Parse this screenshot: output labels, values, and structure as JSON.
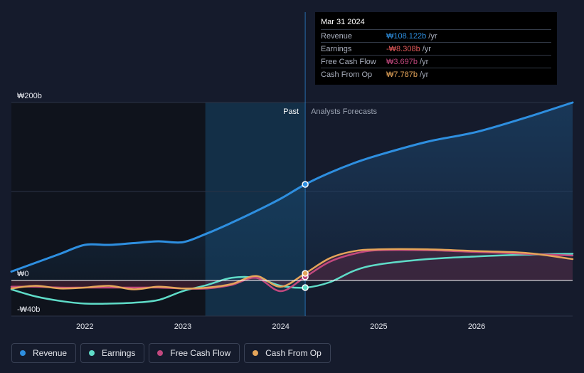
{
  "chart_data": {
    "type": "line",
    "y_unit_prefix": "₩",
    "y_ticks": [
      {
        "value": 200,
        "label": "₩200b"
      },
      {
        "value": 0,
        "label": "₩0"
      },
      {
        "value": -40,
        "label": "-₩40b"
      }
    ],
    "ylim": [
      -40,
      200
    ],
    "xlim": [
      2021.25,
      2026.98
    ],
    "x_ticks": [
      {
        "value": 2022,
        "label": "2022"
      },
      {
        "value": 2023,
        "label": "2023"
      },
      {
        "value": 2024,
        "label": "2024"
      },
      {
        "value": 2025,
        "label": "2025"
      },
      {
        "value": 2026,
        "label": "2026"
      }
    ],
    "past_label": "Past",
    "forecast_label": "Analysts Forecasts",
    "highlight_start": 2023.23,
    "divider_x": 2024.25,
    "series": [
      {
        "name": "Revenue",
        "color": "#2e8fe0",
        "fill": true,
        "x": [
          2021.25,
          2021.5,
          2021.75,
          2022.0,
          2022.25,
          2022.5,
          2022.75,
          2023.0,
          2023.25,
          2023.5,
          2023.75,
          2024.0,
          2024.25,
          2024.5,
          2024.75,
          2025.0,
          2025.5,
          2026.0,
          2026.5,
          2026.98
        ],
        "values": [
          10,
          20,
          30,
          40,
          40,
          42,
          44,
          43,
          53,
          65,
          78,
          92,
          108,
          121,
          132,
          141,
          156,
          167,
          183,
          200
        ]
      },
      {
        "name": "Earnings",
        "color": "#5fdcc8",
        "fill": false,
        "x": [
          2021.25,
          2021.5,
          2021.75,
          2022.0,
          2022.25,
          2022.5,
          2022.75,
          2023.0,
          2023.25,
          2023.5,
          2023.75,
          2024.0,
          2024.25,
          2024.5,
          2024.75,
          2025.0,
          2025.5,
          2026.0,
          2026.5,
          2026.98
        ],
        "values": [
          -10,
          -18,
          -23,
          -26,
          -26,
          -25,
          -22,
          -12,
          -5,
          3,
          3,
          -6,
          -8,
          -2,
          11,
          18,
          24,
          27,
          29,
          30
        ]
      },
      {
        "name": "Free Cash Flow",
        "color": "#c2487e",
        "fill": false,
        "x": [
          2021.25,
          2021.5,
          2021.75,
          2022.0,
          2022.25,
          2022.5,
          2022.75,
          2023.0,
          2023.25,
          2023.5,
          2023.75,
          2024.0,
          2024.25,
          2024.5,
          2024.75,
          2025.0,
          2025.5,
          2026.0,
          2026.5,
          2026.98
        ],
        "values": [
          -7,
          -7,
          -8,
          -8,
          -8,
          -8,
          -8,
          -9,
          -9,
          -5,
          3,
          -12,
          4,
          21,
          30,
          34,
          34,
          32,
          30,
          28
        ]
      },
      {
        "name": "Cash From Op",
        "color": "#e5a55a",
        "fill": false,
        "x": [
          2021.25,
          2021.5,
          2021.75,
          2022.0,
          2022.25,
          2022.5,
          2022.75,
          2023.0,
          2023.25,
          2023.5,
          2023.75,
          2024.0,
          2024.25,
          2024.5,
          2024.75,
          2025.0,
          2025.5,
          2026.0,
          2026.5,
          2026.98
        ],
        "values": [
          -9,
          -6,
          -9,
          -8,
          -6,
          -10,
          -7,
          -9,
          -8,
          -4,
          5,
          -7,
          8,
          25,
          33,
          35,
          35,
          33,
          31,
          24
        ]
      }
    ],
    "markers": [
      {
        "series": "Revenue",
        "x": 2024.25,
        "value": 108
      },
      {
        "series": "Earnings",
        "x": 2024.25,
        "value": -8
      },
      {
        "series": "Free Cash Flow",
        "x": 2024.25,
        "value": 4
      },
      {
        "series": "Cash From Op",
        "x": 2024.25,
        "value": 8
      }
    ]
  },
  "tooltip": {
    "date": "Mar 31 2024",
    "rows": [
      {
        "label": "Revenue",
        "value": "₩108.122b",
        "unit": "/yr",
        "color": "#2e8fe0"
      },
      {
        "label": "Earnings",
        "value": "-₩8.308b",
        "unit": "/yr",
        "color": "#e35a5a"
      },
      {
        "label": "Free Cash Flow",
        "value": "₩3.697b",
        "unit": "/yr",
        "color": "#c2487e"
      },
      {
        "label": "Cash From Op",
        "value": "₩7.787b",
        "unit": "/yr",
        "color": "#e5a55a"
      }
    ]
  },
  "legend": [
    {
      "label": "Revenue",
      "color": "#2e8fe0"
    },
    {
      "label": "Earnings",
      "color": "#5fdcc8"
    },
    {
      "label": "Free Cash Flow",
      "color": "#c2487e"
    },
    {
      "label": "Cash From Op",
      "color": "#e5a55a"
    }
  ]
}
